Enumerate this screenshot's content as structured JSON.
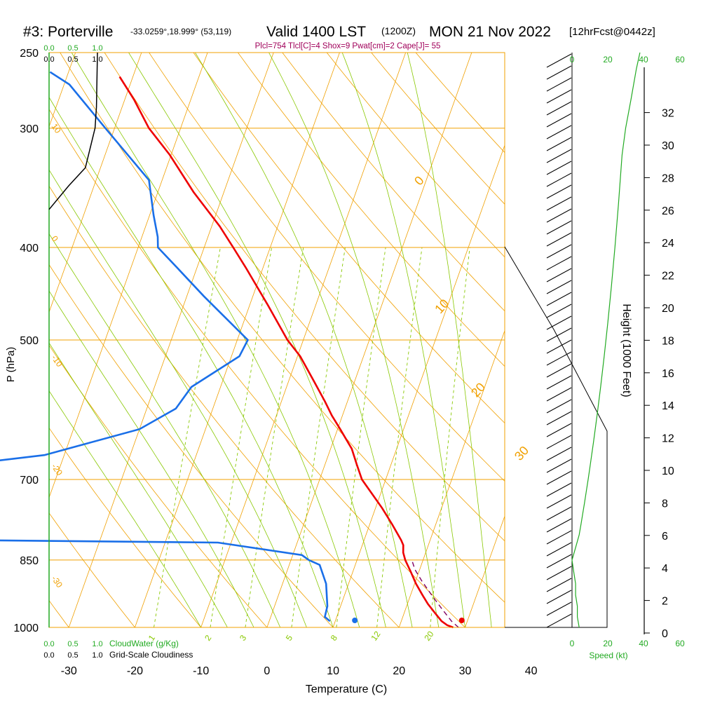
{
  "header": {
    "station": "#3: Porterville",
    "coords": "-33.0259°,18.999° (53,119)",
    "valid_main": "Valid 1400 LST",
    "valid_z": "(1200Z)",
    "date": "MON 21 Nov 2022",
    "forecast": "[12hrFcst@0442z]",
    "indices": "Plcl=754 Tlcl[C]=4 Shox=9 Pwat[cm]=2 Cape[J]= 55"
  },
  "colors": {
    "temperature": "#ee0000",
    "dewpoint": "#1a6fe8",
    "isotherm": "#f0a000",
    "dry_adiabat": "#f0a000",
    "moist_adiabat": "#88c800",
    "mixing_ratio": "#88c800",
    "parcel": "#800060",
    "wind_speed": "#22aa22",
    "cloud": "#000000",
    "indices_text": "#a0005a",
    "green_label": "#22aa22"
  },
  "chart_data": {
    "type": "line",
    "xlabel": "Temperature (C)",
    "ylabel": "P (hPa)",
    "right_ylabel": "Height (1000 Feet)",
    "xlim": [
      -33,
      36
    ],
    "pressure_range": [
      250,
      1000
    ],
    "log_pressure": true,
    "skewed": true,
    "x_ticks": [
      -30,
      -20,
      -10,
      0,
      10,
      20,
      30,
      40
    ],
    "pressure_ticks": [
      250,
      300,
      400,
      500,
      700,
      850,
      1000
    ],
    "height_ticks": [
      0,
      2,
      4,
      6,
      8,
      10,
      12,
      14,
      16,
      18,
      20,
      22,
      24,
      26,
      28,
      30,
      32
    ],
    "cloud_axis": {
      "ticks": [
        "0.0",
        "0.5",
        "1.0"
      ],
      "top_label": "",
      "bottom_label_green": "CloudWater (g/Kg)",
      "bottom_label_black": "Grid-Scale Cloudiness"
    },
    "speed_axis": {
      "ticks": [
        "0",
        "20",
        "40",
        "60"
      ],
      "label": "Speed (kt)"
    },
    "isotherm_labels": [
      "0",
      "10",
      "20",
      "30"
    ],
    "dry_adiabat_labels": [
      "10",
      "0",
      "-10",
      "-20",
      "-30"
    ],
    "mixing_ratio_labels": [
      "1",
      "2",
      "3",
      "5",
      "8",
      "12",
      "20"
    ],
    "series": [
      {
        "key": "temperature",
        "pressure": [
          1000,
          995,
          985,
          965,
          945,
          925,
          900,
          875,
          850,
          835,
          820,
          810,
          780,
          750,
          700,
          675,
          650,
          620,
          600,
          580,
          550,
          520,
          500,
          460,
          420,
          400,
          380,
          350,
          320,
          300,
          280,
          265
        ],
        "values": [
          28.2,
          27.2,
          26.1,
          24.6,
          23.1,
          21.8,
          20.2,
          18.8,
          17.3,
          16.6,
          16.2,
          15.6,
          13.4,
          11.0,
          6.4,
          4.8,
          3.2,
          0.4,
          -1.6,
          -3.4,
          -6.4,
          -9.6,
          -12.4,
          -17.2,
          -22.6,
          -25.6,
          -28.8,
          -34.6,
          -40.2,
          -44.8,
          -48.6,
          -52.0
        ]
      },
      {
        "key": "dewpoint",
        "pressure": [
          985,
          975,
          950,
          900,
          860,
          850,
          840,
          815,
          810,
          795,
          775,
          750,
          720,
          700,
          690,
          660,
          620,
          590,
          560,
          520,
          500,
          450,
          420,
          400,
          390,
          370,
          340,
          300,
          270,
          262
        ],
        "values": [
          9.2,
          8.2,
          8.0,
          6.6,
          4.6,
          2.7,
          1.4,
          -12.0,
          -51.2,
          -52.8,
          -55.8,
          -58.7,
          -64.2,
          -65.6,
          -65.6,
          -43.0,
          -30.0,
          -25.6,
          -24.4,
          -18.8,
          -18.4,
          -27.4,
          -33.0,
          -37.0,
          -37.6,
          -39.4,
          -42.0,
          -51.4,
          -59.2,
          -62.8
        ]
      },
      {
        "key": "parcel",
        "pressure": [
          1000,
          985,
          955,
          925,
          895,
          870,
          848
        ],
        "values": [
          29.0,
          27.6,
          25.4,
          23.2,
          21.0,
          19.3,
          18.2
        ]
      }
    ],
    "surface_points": [
      {
        "label": "",
        "pressure": 1000,
        "temperature": 29.5
      },
      {
        "label": "",
        "pressure": 1000,
        "temperature": 13.3
      }
    ],
    "cloud_profile": {
      "pressure": [
        250,
        285,
        300,
        330,
        345,
        365
      ],
      "fraction": [
        1.0,
        0.98,
        0.95,
        0.75,
        0.4,
        0.0
      ]
    },
    "wind_speed_profile": {
      "pressure": [
        1000,
        975,
        950,
        925,
        900,
        875,
        850,
        825,
        800,
        780,
        760,
        740,
        720,
        700,
        680,
        660,
        640,
        600,
        560,
        520,
        480,
        440,
        400,
        360,
        320,
        300,
        280,
        260,
        250
      ],
      "values": [
        4,
        3,
        3,
        2,
        2,
        1,
        0,
        2,
        4,
        5,
        6,
        7,
        8,
        9,
        10,
        11,
        12,
        14,
        16,
        18,
        20,
        22,
        24,
        26,
        28,
        30,
        33,
        36,
        38
      ]
    }
  }
}
